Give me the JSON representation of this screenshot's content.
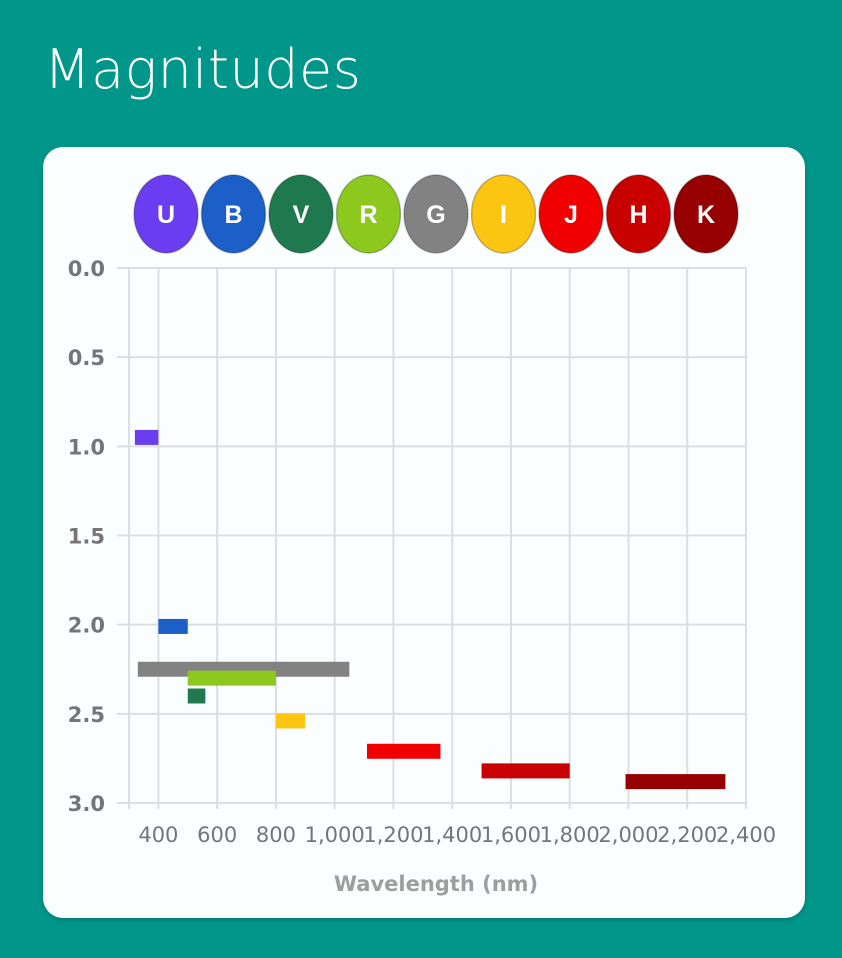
{
  "header": {
    "title": "Magnitudes"
  },
  "filters": [
    {
      "label": "U",
      "color": "#6a3df0"
    },
    {
      "label": "B",
      "color": "#1c5fc8"
    },
    {
      "label": "V",
      "color": "#1e7a4e"
    },
    {
      "label": "R",
      "color": "#8cc81e"
    },
    {
      "label": "G",
      "color": "#828282"
    },
    {
      "label": "I",
      "color": "#fcc511"
    },
    {
      "label": "J",
      "color": "#f00000"
    },
    {
      "label": "H",
      "color": "#c80000"
    },
    {
      "label": "K",
      "color": "#960000"
    }
  ],
  "chart_data": {
    "type": "bar",
    "subtype": "floating-horizontal-range",
    "xlabel": "Wavelength (nm)",
    "ylabel": "",
    "x_ticks": [
      "400",
      "600",
      "800",
      "1,000",
      "1,200",
      "1,400",
      "1,600",
      "1,800",
      "2,000",
      "2,200",
      "2,400"
    ],
    "y_ticks": [
      "0.0",
      "0.5",
      "1.0",
      "1.5",
      "2.0",
      "2.5",
      "3.0"
    ],
    "xlim": [
      300,
      2400
    ],
    "ylim": [
      0,
      3
    ],
    "y_inverted": true,
    "grid": true,
    "legend": "top",
    "series": [
      {
        "name": "U",
        "x_start": 320,
        "x_end": 400,
        "magnitude": 0.95,
        "color": "#6a3df0"
      },
      {
        "name": "B",
        "x_start": 400,
        "x_end": 500,
        "magnitude": 2.01,
        "color": "#1c5fc8"
      },
      {
        "name": "V",
        "x_start": 500,
        "x_end": 560,
        "magnitude": 2.4,
        "color": "#1e7a4e"
      },
      {
        "name": "R",
        "x_start": 500,
        "x_end": 800,
        "magnitude": 2.3,
        "color": "#8cc81e"
      },
      {
        "name": "G",
        "x_start": 330,
        "x_end": 1050,
        "magnitude": 2.25,
        "color": "#828282"
      },
      {
        "name": "I",
        "x_start": 800,
        "x_end": 900,
        "magnitude": 2.54,
        "color": "#fcc511"
      },
      {
        "name": "J",
        "x_start": 1110,
        "x_end": 1360,
        "magnitude": 2.71,
        "color": "#f00000"
      },
      {
        "name": "H",
        "x_start": 1500,
        "x_end": 1800,
        "magnitude": 2.82,
        "color": "#c80000"
      },
      {
        "name": "K",
        "x_start": 1990,
        "x_end": 2330,
        "magnitude": 2.88,
        "color": "#960000"
      }
    ]
  }
}
